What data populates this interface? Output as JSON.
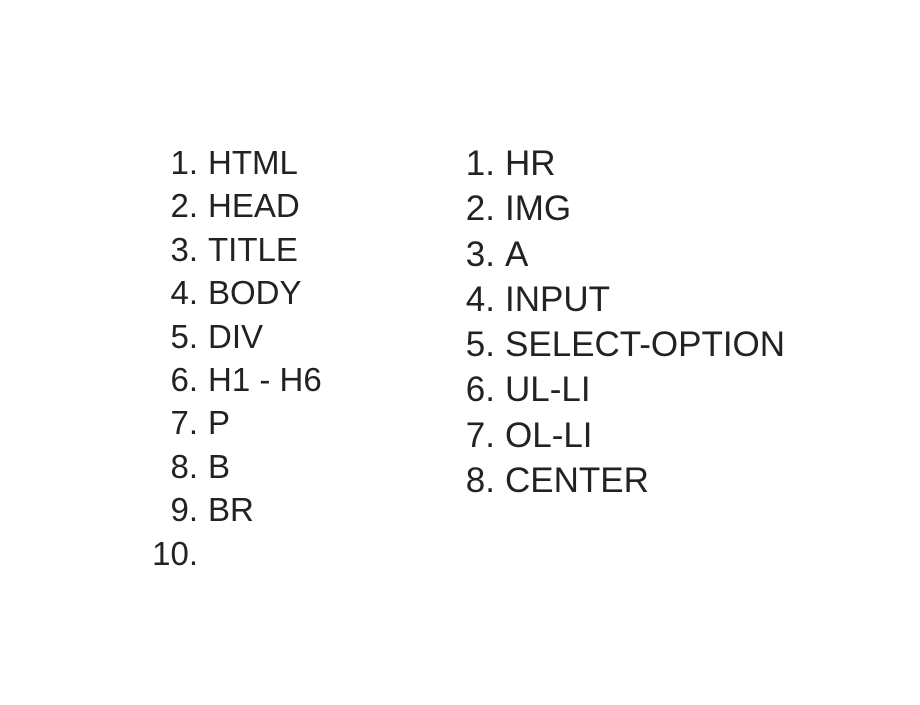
{
  "left_list": {
    "items": [
      {
        "number": "1.",
        "label": "HTML"
      },
      {
        "number": "2.",
        "label": "HEAD"
      },
      {
        "number": "3.",
        "label": "TITLE"
      },
      {
        "number": "4.",
        "label": "BODY"
      },
      {
        "number": "5.",
        "label": "DIV"
      },
      {
        "number": "6.",
        "label": "H1 - H6"
      },
      {
        "number": "7.",
        "label": "P"
      },
      {
        "number": "8.",
        "label": "B"
      },
      {
        "number": "9.",
        "label": "BR"
      },
      {
        "number": "10.",
        "label": ""
      }
    ]
  },
  "right_list": {
    "items": [
      {
        "number": "1.",
        "label": "HR"
      },
      {
        "number": "2.",
        "label": "IMG"
      },
      {
        "number": "3.",
        "label": "A"
      },
      {
        "number": "4.",
        "label": "INPUT"
      },
      {
        "number": "5.",
        "label": "SELECT-OPTION"
      },
      {
        "number": "6.",
        "label": "UL-LI"
      },
      {
        "number": "7.",
        "label": "OL-LI"
      },
      {
        "number": "8.",
        "label": "CENTER"
      }
    ]
  }
}
